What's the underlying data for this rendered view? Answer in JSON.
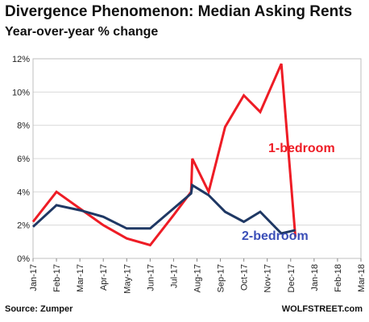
{
  "chart_data": {
    "type": "line",
    "title": "Divergence Phenomenon: Median Asking Rents",
    "subtitle": "Year-over-year % change",
    "xlabel": "",
    "ylabel": "",
    "categories": [
      "Jan-17",
      "Feb-17",
      "Mar-17",
      "Apr-17",
      "May-17",
      "Jun-17",
      "Jul-17",
      "Aug-17",
      "Sep-17",
      "Oct-17",
      "Nov-17",
      "Dec-17",
      "Jan-18",
      "Feb-18",
      "Mar-18"
    ],
    "ylim": [
      0,
      12
    ],
    "yticks": [
      "0%",
      "2%",
      "4%",
      "6%",
      "8%",
      "10%",
      "12%"
    ],
    "grid": true,
    "series": [
      {
        "name": "1-bedroom",
        "color": "#ee1c25",
        "points": [
          {
            "x": 0,
            "y": 2.2
          },
          {
            "x": 1,
            "y": 4.0
          },
          {
            "x": 2,
            "y": 3.0
          },
          {
            "x": 3,
            "y": 2.0
          },
          {
            "x": 4,
            "y": 1.2
          },
          {
            "x": 5,
            "y": 0.8
          },
          {
            "x": 6,
            "y": 2.6
          },
          {
            "x": 6.75,
            "y": 4.0
          },
          {
            "x": 6.8,
            "y": 6.0
          },
          {
            "x": 7.5,
            "y": 4.0
          },
          {
            "x": 8.2,
            "y": 7.9
          },
          {
            "x": 9,
            "y": 9.8
          },
          {
            "x": 9.7,
            "y": 8.8
          },
          {
            "x": 10.6,
            "y": 11.7
          },
          {
            "x": 11.2,
            "y": 1.3
          }
        ]
      },
      {
        "name": "2-bedroom",
        "color": "#1f3864",
        "points": [
          {
            "x": 0,
            "y": 1.9
          },
          {
            "x": 1,
            "y": 3.2
          },
          {
            "x": 2,
            "y": 2.9
          },
          {
            "x": 3,
            "y": 2.5
          },
          {
            "x": 4,
            "y": 1.8
          },
          {
            "x": 5,
            "y": 1.8
          },
          {
            "x": 6,
            "y": 3.0
          },
          {
            "x": 6.75,
            "y": 3.9
          },
          {
            "x": 6.8,
            "y": 4.4
          },
          {
            "x": 7.5,
            "y": 3.8
          },
          {
            "x": 8.2,
            "y": 2.8
          },
          {
            "x": 9,
            "y": 2.2
          },
          {
            "x": 9.7,
            "y": 2.8
          },
          {
            "x": 10.6,
            "y": 1.5
          },
          {
            "x": 11.2,
            "y": 1.7
          }
        ]
      }
    ],
    "annotations": [
      {
        "text": "1-bedroom",
        "series": 0,
        "color": "#ee1c25"
      },
      {
        "text": "2-bedroom",
        "series": 1,
        "color": "#3b4fb8"
      }
    ]
  },
  "footer": {
    "source": "Source: Zumper",
    "brand": "WOLFSTREET.com"
  }
}
